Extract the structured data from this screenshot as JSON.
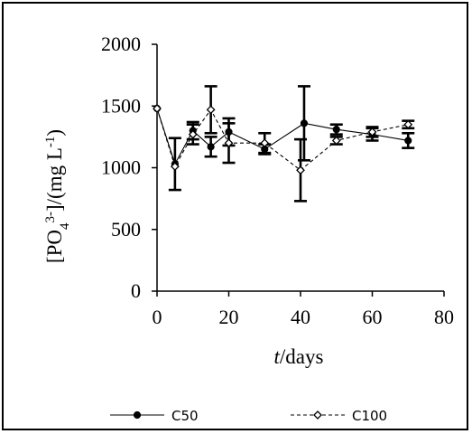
{
  "chart_data": {
    "type": "line",
    "title": "",
    "ylabel": {
      "base": "[PO",
      "sub": "4",
      "sup": "3-",
      "rest": "]/(mg L",
      "sup2": "-1",
      "close": ")"
    },
    "xlabel": {
      "italic": "t",
      "rest": "/days"
    },
    "xlim": [
      0,
      80
    ],
    "ylim": [
      0,
      2000
    ],
    "xticks": [
      0,
      20,
      40,
      60,
      80
    ],
    "yticks": [
      0,
      500,
      1000,
      1500,
      2000
    ],
    "grid": false,
    "legend_position": "bottom",
    "series": [
      {
        "name": "C50",
        "line": "solid",
        "marker": "filled-circle",
        "x": [
          0,
          5,
          10,
          15,
          20,
          30,
          41,
          50,
          60,
          70
        ],
        "y": [
          1480,
          1030,
          1300,
          1170,
          1290,
          1150,
          1360,
          1310,
          1270,
          1220
        ],
        "err": [
          0,
          210,
          70,
          80,
          110,
          40,
          300,
          40,
          50,
          60
        ]
      },
      {
        "name": "C100",
        "line": "dashed",
        "marker": "open-diamond",
        "x": [
          0,
          5,
          10,
          15,
          20,
          30,
          40,
          50,
          60,
          70
        ],
        "y": [
          1480,
          1010,
          1270,
          1470,
          1200,
          1200,
          980,
          1220,
          1290,
          1350
        ],
        "err": [
          0,
          0,
          80,
          190,
          160,
          80,
          250,
          30,
          40,
          30
        ]
      }
    ]
  }
}
